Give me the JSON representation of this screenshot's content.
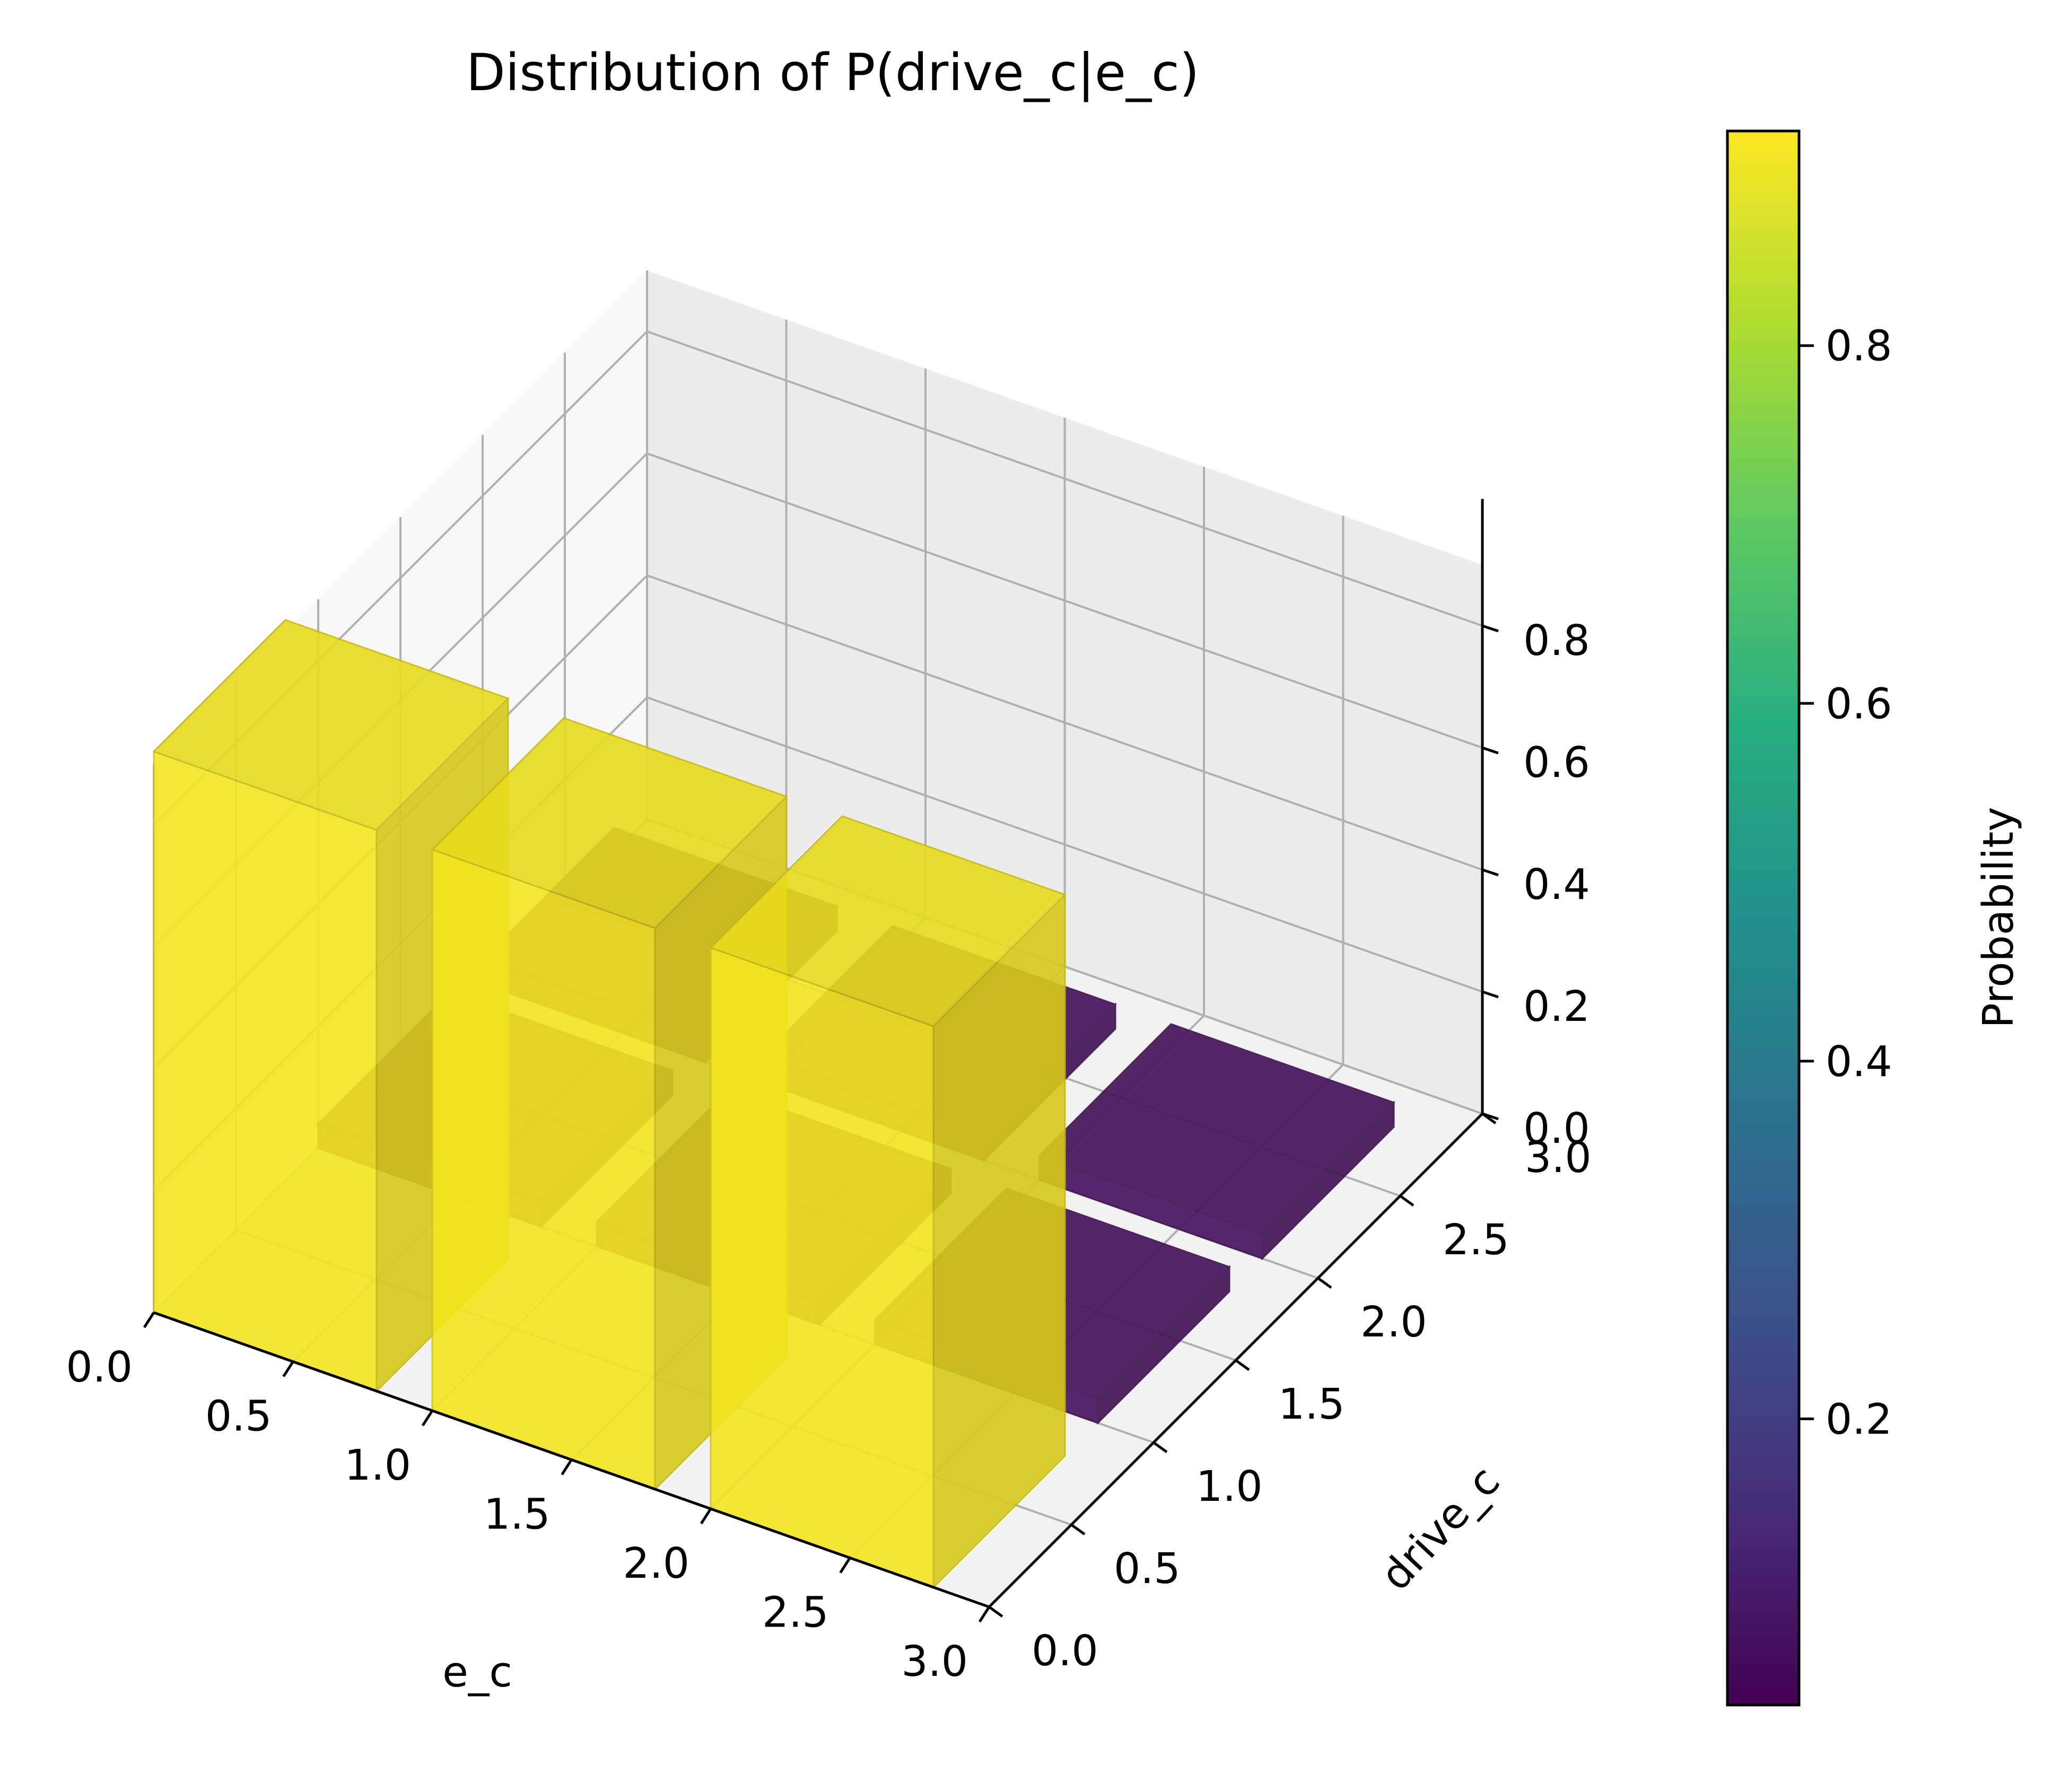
{
  "chart_data": {
    "type": "bar3d",
    "title": "Distribution of P(drive_c|e_c)",
    "xlabel": "e_c",
    "ylabel": "drive_c",
    "zlabel": "",
    "xlim": [
      0.0,
      3.0
    ],
    "ylim": [
      0.0,
      3.0
    ],
    "zlim": [
      0.0,
      0.9
    ],
    "x_ticks": [
      "0.0",
      "0.5",
      "1.0",
      "1.5",
      "2.0",
      "2.5",
      "3.0"
    ],
    "y_ticks": [
      "0.0",
      "0.5",
      "1.0",
      "1.5",
      "2.0",
      "2.5",
      "3.0"
    ],
    "z_ticks": [
      "0.0",
      "0.2",
      "0.4",
      "0.6",
      "0.8"
    ],
    "grid": true,
    "bars": [
      {
        "e_c": 0,
        "drive_c": 0,
        "p": 0.92
      },
      {
        "e_c": 0,
        "drive_c": 1,
        "p": 0.04
      },
      {
        "e_c": 0,
        "drive_c": 2,
        "p": 0.04
      },
      {
        "e_c": 1,
        "drive_c": 0,
        "p": 0.92
      },
      {
        "e_c": 1,
        "drive_c": 1,
        "p": 0.04
      },
      {
        "e_c": 1,
        "drive_c": 2,
        "p": 0.04
      },
      {
        "e_c": 2,
        "drive_c": 0,
        "p": 0.92
      },
      {
        "e_c": 2,
        "drive_c": 1,
        "p": 0.04
      },
      {
        "e_c": 2,
        "drive_c": 2,
        "p": 0.04
      }
    ],
    "colorbar": {
      "label": "Probability",
      "ticks": [
        "0.2",
        "0.4",
        "0.6",
        "0.8"
      ],
      "range": [
        0.04,
        0.92
      ],
      "colormap": "viridis"
    },
    "colors": {
      "high": "#f5e61f",
      "low": "#46125e"
    }
  }
}
